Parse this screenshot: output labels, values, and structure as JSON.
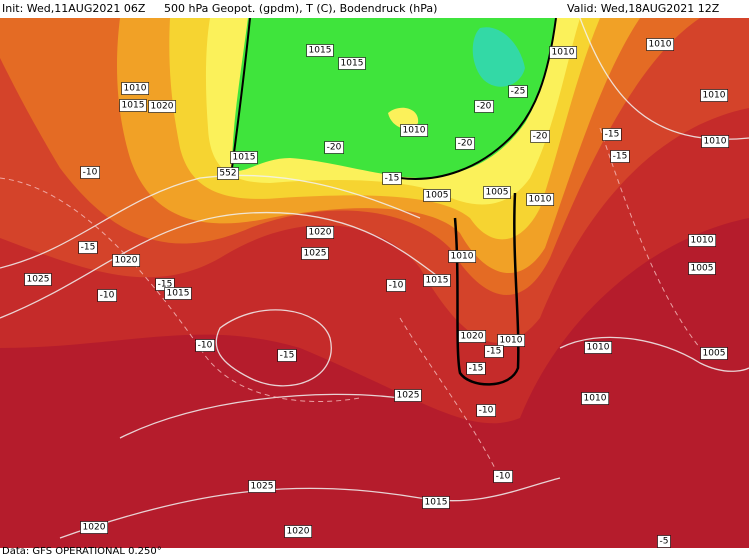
{
  "header": {
    "init": "Init: Wed,11AUG2021 06Z",
    "title": "500 hPa Geopot. (gpdm), T (C), Bodendruck (hPa)",
    "valid": "Valid: Wed,18AUG2021 12Z"
  },
  "map": {
    "labels": [
      "1015",
      "1015",
      "1010",
      "1015",
      "1020",
      "1010",
      "1010",
      "1010",
      "-15",
      "-20",
      "1010",
      "-15",
      "1015",
      "552",
      "1010",
      "-20",
      "-25",
      "-20",
      "-20",
      "-15",
      "1005",
      "1005",
      "1010",
      "-10",
      "-15",
      "1020",
      "1020",
      "1025",
      "1010",
      "1010",
      "1005",
      "1025",
      "-10",
      "-15",
      "1015",
      "-10",
      "1015",
      "-10",
      "-15",
      "1020",
      "1010",
      "-15",
      "1010",
      "1005",
      "-15",
      "1025",
      "1010",
      "-10",
      "1025",
      "-10",
      "1015",
      "1020",
      "1020",
      "-5"
    ]
  },
  "footer": {
    "source": "Data: GFS OPERATIONAL 0.250°"
  }
}
